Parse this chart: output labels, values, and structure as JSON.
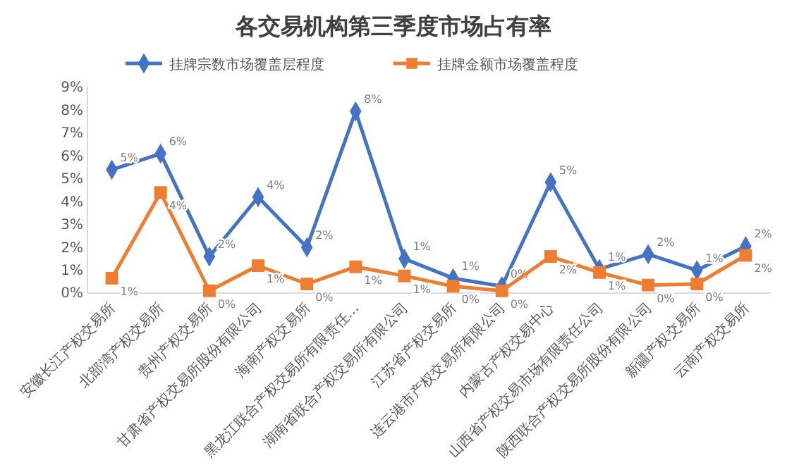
{
  "chart_data": {
    "type": "line",
    "title": "各交易机构第三季度市场占有率",
    "categories": [
      "安徽长江产权交易所",
      "北部湾产权交易所",
      "贵州产权交易所",
      "甘肃省产权交易所股份有限公司",
      "海南产权交易所",
      "黑龙江联合产权交易所有限责任…",
      "湖南省联合产权交易所有限公司",
      "江苏省产权交易所",
      "连云港市产权交易所有限公司",
      "内蒙古产权交易中心",
      "山西省产权交易市场有限责任公司",
      "陕西联合产权交易所股份有限公司",
      "新疆产权交易所",
      "云南产权交易所"
    ],
    "series": [
      {
        "name": "挂牌宗数市场覆盖层程度",
        "color": "#4472c4",
        "marker": "diamond",
        "values": [
          5.4,
          6.1,
          1.6,
          4.2,
          2.0,
          7.95,
          1.5,
          0.65,
          0.3,
          4.85,
          1.05,
          1.7,
          1.0,
          2.05
        ],
        "value_labels": [
          "5%",
          "6%",
          "2%",
          "4%",
          "2%",
          "8%",
          "1%",
          "1%",
          "0%",
          "5%",
          "1%",
          "2%",
          "1%",
          "2%"
        ]
      },
      {
        "name": "挂牌金额市场覆盖程度",
        "color": "#ed7d31",
        "marker": "square",
        "values": [
          0.65,
          4.4,
          0.1,
          1.2,
          0.4,
          1.15,
          0.75,
          0.3,
          0.1,
          1.6,
          0.9,
          0.35,
          0.4,
          1.65
        ],
        "value_labels": [
          "1%",
          "4%",
          "0%",
          "1%",
          "0%",
          "1%",
          "1%",
          "0%",
          "0%",
          "2%",
          "1%",
          "0%",
          "0%",
          "2%"
        ]
      }
    ],
    "ylim": [
      0,
      9
    ],
    "yticks": [
      {
        "value": 0,
        "label": "0%"
      },
      {
        "value": 1,
        "label": "1%"
      },
      {
        "value": 2,
        "label": "2%"
      },
      {
        "value": 3,
        "label": "3%"
      },
      {
        "value": 4,
        "label": "4%"
      },
      {
        "value": 5,
        "label": "5%"
      },
      {
        "value": 6,
        "label": "6%"
      },
      {
        "value": 7,
        "label": "7%"
      },
      {
        "value": 8,
        "label": "8%"
      },
      {
        "value": 9,
        "label": "9%"
      }
    ],
    "legend": "top",
    "grid": false
  }
}
